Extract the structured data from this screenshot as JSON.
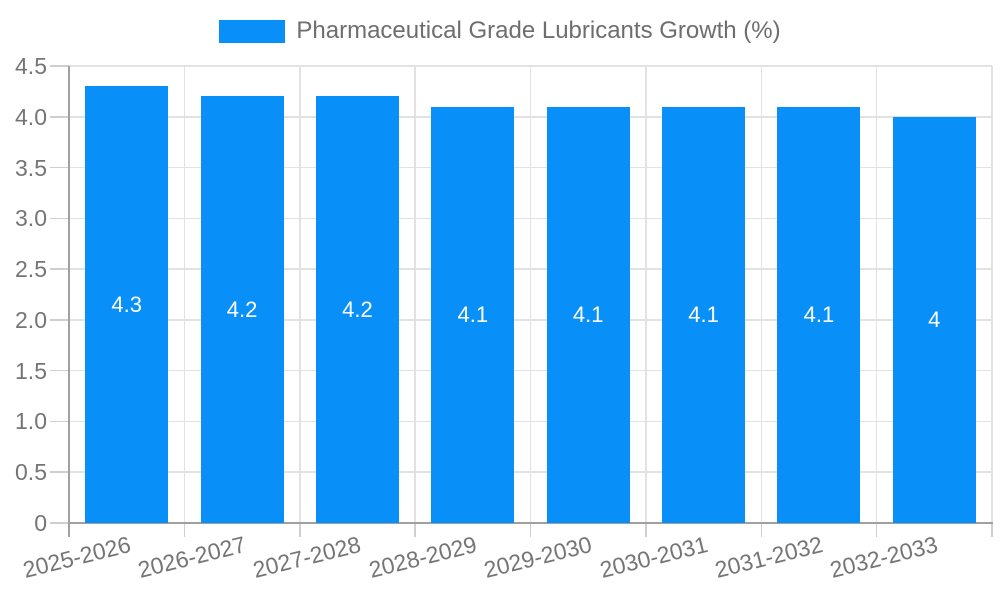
{
  "chart_data": {
    "type": "bar",
    "title": "Pharmaceutical Grade Lubricants Growth (%)",
    "categories": [
      "2025-2026",
      "2026-2027",
      "2027-2028",
      "2028-2029",
      "2029-2030",
      "2030-2031",
      "2031-2032",
      "2032-2033"
    ],
    "values": [
      4.3,
      4.2,
      4.2,
      4.1,
      4.1,
      4.1,
      4.1,
      4
    ],
    "value_labels": [
      "4.3",
      "4.2",
      "4.2",
      "4.1",
      "4.1",
      "4.1",
      "4.1",
      "4"
    ],
    "xlabel": "",
    "ylabel": "",
    "ylim": [
      0,
      4.5
    ],
    "y_tick_labels": [
      "4.5",
      "4.0",
      "3.5",
      "3.0",
      "2.5",
      "2.0",
      "1.5",
      "1.0",
      "0.5",
      "0"
    ],
    "grid": true,
    "legend_position": "top-center",
    "legend_entries": [
      "Pharmaceutical Grade Lubricants Growth (%)"
    ],
    "colors": {
      "bar": "#0890F8",
      "grid": "#E2E2E2",
      "axis": "#A0A0A0",
      "tick": "#CFCFCF",
      "text": "#757575",
      "title_text": "#6E6E6E",
      "bar_label": "#FFFFFF",
      "background": "#FFFFFF"
    }
  }
}
